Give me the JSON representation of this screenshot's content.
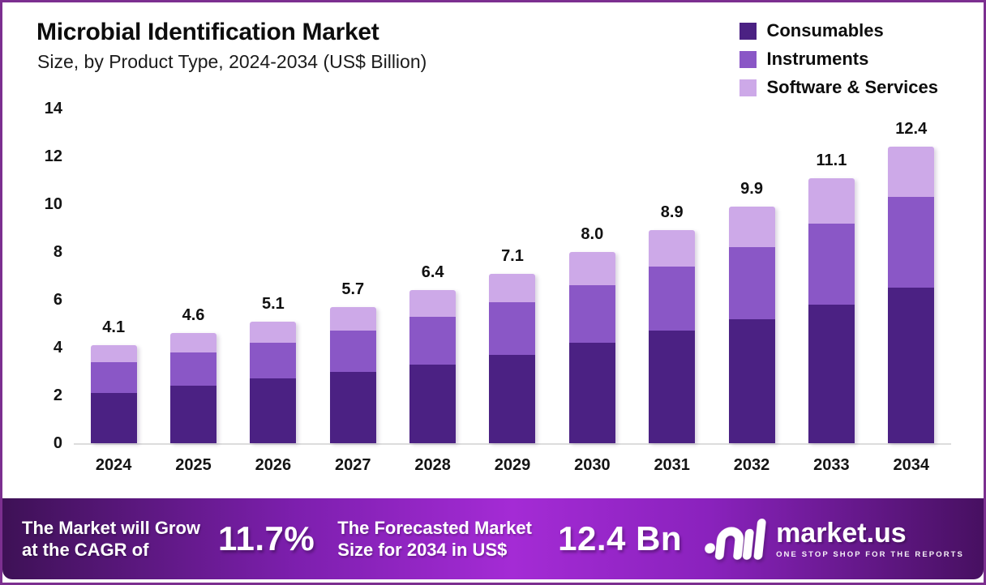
{
  "chart_data": {
    "type": "bar",
    "variant": "stacked",
    "title": "Microbial Identification Market",
    "subtitle": "Size, by Product Type, 2024-2034 (US$ Billion)",
    "categories": [
      "2024",
      "2025",
      "2026",
      "2027",
      "2028",
      "2029",
      "2030",
      "2031",
      "2032",
      "2033",
      "2034"
    ],
    "series": [
      {
        "name": "Consumables",
        "color": "#4b2183",
        "values": [
          2.1,
          2.4,
          2.7,
          3.0,
          3.3,
          3.7,
          4.2,
          4.7,
          5.2,
          5.8,
          6.5
        ]
      },
      {
        "name": "Instruments",
        "color": "#8a57c6",
        "values": [
          1.3,
          1.4,
          1.5,
          1.7,
          2.0,
          2.2,
          2.4,
          2.7,
          3.0,
          3.4,
          3.8
        ]
      },
      {
        "name": "Software & Services",
        "color": "#cda9e8",
        "values": [
          0.7,
          0.8,
          0.9,
          1.0,
          1.1,
          1.2,
          1.4,
          1.5,
          1.7,
          1.9,
          2.1
        ]
      }
    ],
    "totals": [
      4.1,
      4.6,
      5.1,
      5.7,
      6.4,
      7.1,
      8.0,
      8.9,
      9.9,
      11.1,
      12.4
    ],
    "y_ticks": [
      0,
      2,
      4,
      6,
      8,
      10,
      12,
      14
    ],
    "ylim": [
      0,
      14
    ],
    "xlabel": "",
    "ylabel": "",
    "grid": false,
    "legend_position": "top-right"
  },
  "banner": {
    "cagr_label": "The Market will Grow at the CAGR of",
    "cagr_value": "11.7%",
    "forecast_label": "The Forecasted Market Size for 2034 in US$",
    "forecast_value": "12.4 Bn",
    "logo_text": "market.us",
    "logo_tagline": "ONE STOP SHOP FOR THE REPORTS"
  },
  "colors": {
    "frame_border": "#7c2f90",
    "baseline": "#dcdcdc",
    "title_text": "#0d0d0d",
    "banner_text": "#ffffff"
  }
}
